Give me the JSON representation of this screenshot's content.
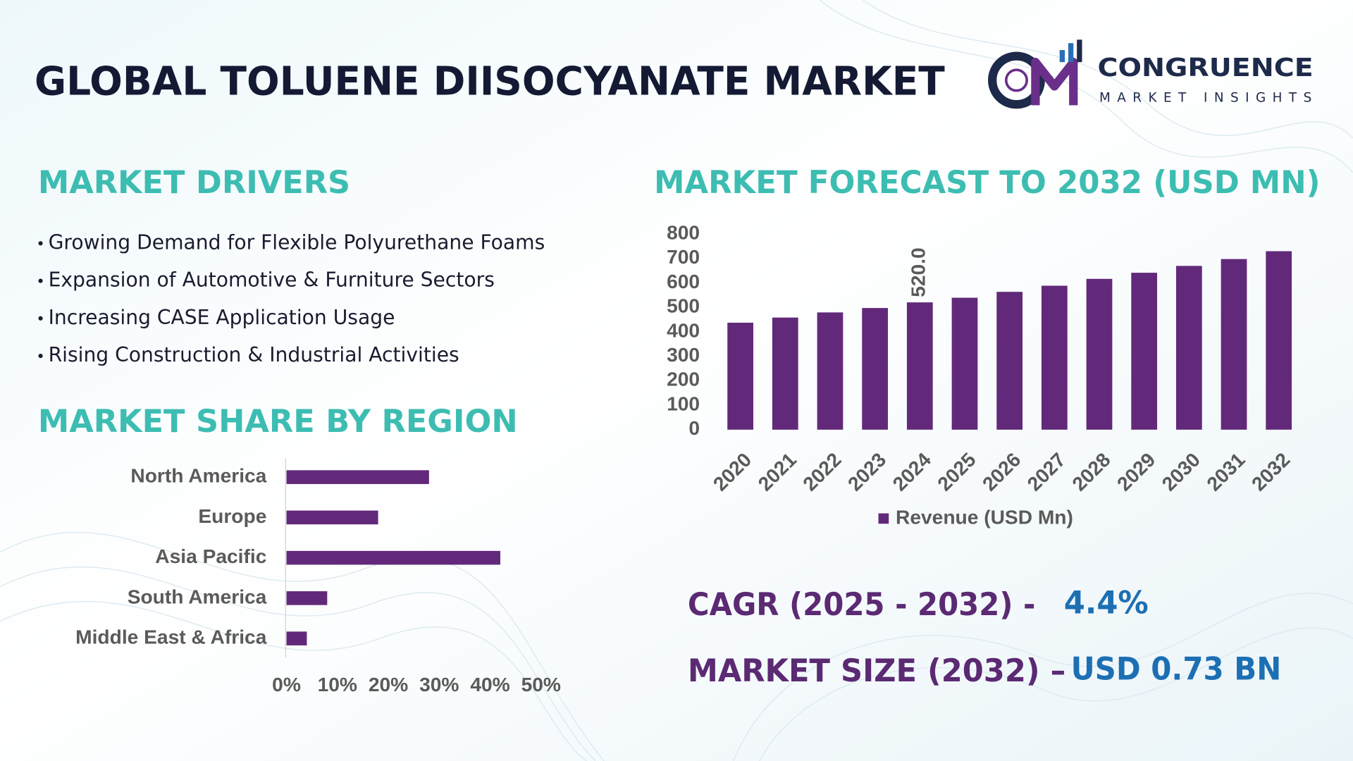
{
  "header": {
    "title": "GLOBAL TOLUENE DIISOCYANATE MARKET",
    "brand": "CONGRUENCE",
    "brand_tagline": "MARKET INSIGHTS"
  },
  "drivers": {
    "title": "MARKET DRIVERS",
    "items": [
      "Growing Demand for Flexible Polyurethane Foams",
      "Expansion of Automotive & Furniture Sectors",
      "Increasing CASE Application Usage",
      "Rising Construction & Industrial Activities"
    ]
  },
  "chart_data": [
    {
      "type": "bar",
      "title": "MARKET FORECAST TO 2032 (USD MN)",
      "categories": [
        "2020",
        "2021",
        "2022",
        "2023",
        "2024",
        "2025",
        "2026",
        "2027",
        "2028",
        "2029",
        "2030",
        "2031",
        "2032"
      ],
      "series": [
        {
          "name": "Revenue (USD Mn)",
          "color": "#62297a",
          "values": [
            437,
            458,
            479,
            497,
            520,
            539,
            563,
            588,
            616,
            641,
            669,
            697,
            729
          ],
          "value_labels": [
            null,
            null,
            null,
            null,
            "520.0",
            null,
            null,
            null,
            null,
            null,
            null,
            null,
            null
          ]
        }
      ],
      "ylim": [
        0,
        800
      ],
      "yticks": [
        0,
        100,
        200,
        300,
        400,
        500,
        600,
        700,
        800
      ],
      "grid": false,
      "legend": "bottom"
    },
    {
      "type": "hbar",
      "title": "MARKET SHARE BY REGION",
      "categories": [
        "North America",
        "Europe",
        "Asia Pacific",
        "South America",
        "Middle East & Africa"
      ],
      "values": [
        28,
        18,
        42,
        8,
        4
      ],
      "color": "#62297a",
      "xlim": [
        0,
        50
      ],
      "xticks": [
        {
          "value": 0,
          "label": "0%"
        },
        {
          "value": 10,
          "label": "10%"
        },
        {
          "value": 20,
          "label": "20%"
        },
        {
          "value": 30,
          "label": "30%"
        },
        {
          "value": 40,
          "label": "40%"
        },
        {
          "value": 50,
          "label": "50%"
        }
      ],
      "grid": false
    }
  ],
  "highlights": [
    {
      "label": "CAGR (2025 - 2032) -",
      "value": "4.4%"
    },
    {
      "label": "MARKET SIZE (2032) –",
      "value": "USD 0.73 BN"
    }
  ]
}
